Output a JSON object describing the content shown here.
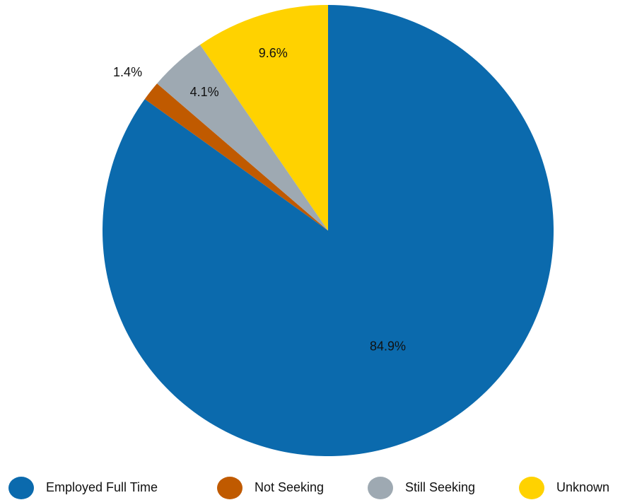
{
  "chart_data": {
    "type": "pie",
    "categories": [
      "Employed Full Time",
      "Not Seeking",
      "Still Seeking",
      "Unknown"
    ],
    "values": [
      84.9,
      1.4,
      4.1,
      9.6
    ],
    "value_labels": [
      "84.9%",
      "1.4%",
      "4.1%",
      "9.6%"
    ],
    "colors": [
      "#0b6aad",
      "#c05a00",
      "#9ea9b2",
      "#ffd200"
    ],
    "legend": "bottom"
  }
}
